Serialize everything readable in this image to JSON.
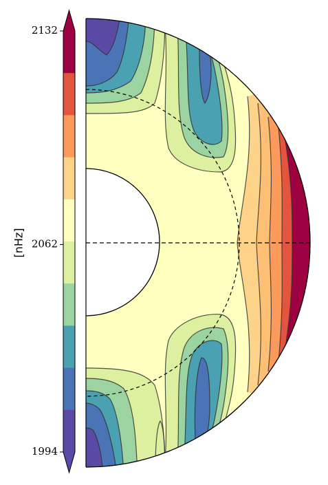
{
  "chart_data": {
    "type": "contour",
    "title": "",
    "unit_label": "[nHz]",
    "colorbar": {
      "ticks": [
        "2132",
        "2062",
        "1994"
      ],
      "tick_values": [
        2132,
        2062,
        1994
      ],
      "range": [
        1994,
        2132
      ],
      "levels": 9,
      "colors": [
        "#5b4aa5",
        "#4a74b5",
        "#4aa1b1",
        "#9bd3a1",
        "#dcf0a0",
        "#ffffbf",
        "#fdd38a",
        "#fb9a5a",
        "#e4543f",
        "#9e0142"
      ],
      "extend": "both"
    },
    "domain": "meridional half-disk",
    "inner_radius_fraction": 0.33,
    "dashed_circle_fraction": 0.69,
    "equator_line": "dashed",
    "trend": "values increase toward the equatorial surface, lowest near the poles"
  }
}
